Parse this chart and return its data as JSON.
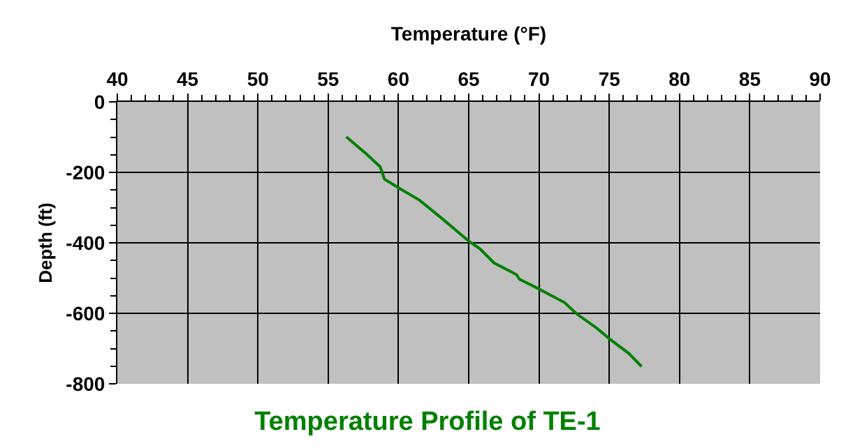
{
  "chart_data": {
    "type": "line",
    "title": "Temperature Profile of TE-1",
    "xlabel": "Temperature (°F)",
    "ylabel": "Depth (ft)",
    "x": [
      56.3,
      56.4,
      57.7,
      58.7,
      59.0,
      60.1,
      61.5,
      63.1,
      65.0,
      65.8,
      66.8,
      68.4,
      68.6,
      69.9,
      71.8,
      72.7,
      74.1,
      75.1,
      76.4,
      77.3
    ],
    "series": [
      {
        "color": "#008000",
        "values": [
          -99,
          -103,
          -147,
          -184,
          -219,
          -246,
          -279,
          -331,
          -395,
          -417,
          -457,
          -490,
          -503,
          -529,
          -569,
          -602,
          -642,
          -675,
          -714,
          -751
        ]
      }
    ],
    "xlim": [
      40,
      90
    ],
    "xticks": [
      40,
      45,
      50,
      55,
      60,
      65,
      70,
      75,
      80,
      85,
      90
    ],
    "ylim": [
      -800,
      0
    ],
    "yticks": [
      0,
      -200,
      -400,
      -600,
      -800
    ],
    "grid": true,
    "legend": false,
    "marker": "none",
    "line_style": "solid"
  }
}
